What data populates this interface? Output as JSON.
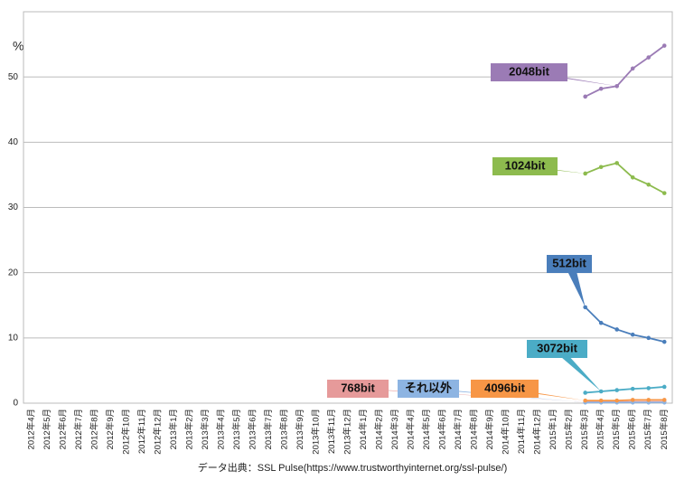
{
  "chart_data": {
    "type": "line",
    "y_label": "%",
    "source": "データ出典：SSL Pulse(https://www.trustworthyinternet.org/ssl-pulse/)",
    "categories": [
      "2012年4月",
      "2012年5月",
      "2012年6月",
      "2012年7月",
      "2012年8月",
      "2012年9月",
      "2012年10月",
      "2012年11月",
      "2012年12月",
      "2013年1月",
      "2013年2月",
      "2013年3月",
      "2013年4月",
      "2013年5月",
      "2013年6月",
      "2013年7月",
      "2013年8月",
      "2013年9月",
      "2013年10月",
      "2013年11月",
      "2013年12月",
      "2014年1月",
      "2014年2月",
      "2014年3月",
      "2014年4月",
      "2014年5月",
      "2014年6月",
      "2014年7月",
      "2014年8月",
      "2014年9月",
      "2014年10月",
      "2014年11月",
      "2014年12月",
      "2015年1月",
      "2015年2月",
      "2015年3月",
      "2015年4月",
      "2015年5月",
      "2015年6月",
      "2015年7月",
      "2015年8月"
    ],
    "ylim": [
      0,
      60
    ],
    "yticks": [
      0,
      10,
      20,
      30,
      40,
      50
    ],
    "grid": true,
    "series": [
      {
        "name": "2048bit",
        "color": "#9b7bb5",
        "values": [
          null,
          null,
          null,
          null,
          null,
          null,
          null,
          null,
          null,
          null,
          null,
          null,
          null,
          null,
          null,
          null,
          null,
          null,
          null,
          null,
          null,
          null,
          null,
          null,
          null,
          null,
          null,
          null,
          null,
          null,
          null,
          null,
          null,
          null,
          null,
          47.0,
          48.2,
          48.6,
          51.3,
          53.0,
          54.8
        ]
      },
      {
        "name": "1024bit",
        "color": "#8dbb4e",
        "values": [
          null,
          null,
          null,
          null,
          null,
          null,
          null,
          null,
          null,
          null,
          null,
          null,
          null,
          null,
          null,
          null,
          null,
          null,
          null,
          null,
          null,
          null,
          null,
          null,
          null,
          null,
          null,
          null,
          null,
          null,
          null,
          null,
          null,
          null,
          null,
          35.2,
          36.2,
          36.8,
          34.6,
          33.5,
          32.2
        ]
      },
      {
        "name": "512bit",
        "color": "#4a7ebb",
        "values": [
          null,
          null,
          null,
          null,
          null,
          null,
          null,
          null,
          null,
          null,
          null,
          null,
          null,
          null,
          null,
          null,
          null,
          null,
          null,
          null,
          null,
          null,
          null,
          null,
          null,
          null,
          null,
          null,
          null,
          null,
          null,
          null,
          null,
          null,
          null,
          14.7,
          12.3,
          11.3,
          10.5,
          10.0,
          9.4
        ]
      },
      {
        "name": "3072bit",
        "color": "#4bacc6",
        "values": [
          null,
          null,
          null,
          null,
          null,
          null,
          null,
          null,
          null,
          null,
          null,
          null,
          null,
          null,
          null,
          null,
          null,
          null,
          null,
          null,
          null,
          null,
          null,
          null,
          null,
          null,
          null,
          null,
          null,
          null,
          null,
          null,
          null,
          null,
          null,
          1.6,
          1.8,
          2.0,
          2.2,
          2.3,
          2.5
        ]
      },
      {
        "name": "768bit",
        "color": "#e69a9a",
        "values": [
          null,
          null,
          null,
          null,
          null,
          null,
          null,
          null,
          null,
          null,
          null,
          null,
          null,
          null,
          null,
          null,
          null,
          null,
          null,
          null,
          null,
          null,
          null,
          null,
          null,
          null,
          null,
          null,
          null,
          null,
          null,
          null,
          null,
          null,
          null,
          0.2,
          0.2,
          0.2,
          0.2,
          0.2,
          0.2
        ]
      },
      {
        "name": "それ以外",
        "color": "#8db4e2",
        "values": [
          null,
          null,
          null,
          null,
          null,
          null,
          null,
          null,
          null,
          null,
          null,
          null,
          null,
          null,
          null,
          null,
          null,
          null,
          null,
          null,
          null,
          null,
          null,
          null,
          null,
          null,
          null,
          null,
          null,
          null,
          null,
          null,
          null,
          null,
          null,
          0.1,
          0.1,
          0.1,
          0.1,
          0.1,
          0.1
        ]
      },
      {
        "name": "4096bit",
        "color": "#f79646",
        "values": [
          null,
          null,
          null,
          null,
          null,
          null,
          null,
          null,
          null,
          null,
          null,
          null,
          null,
          null,
          null,
          null,
          null,
          null,
          null,
          null,
          null,
          null,
          null,
          null,
          null,
          null,
          null,
          null,
          null,
          null,
          null,
          null,
          null,
          null,
          null,
          0.4,
          0.4,
          0.4,
          0.5,
          0.5,
          0.5
        ]
      }
    ]
  }
}
